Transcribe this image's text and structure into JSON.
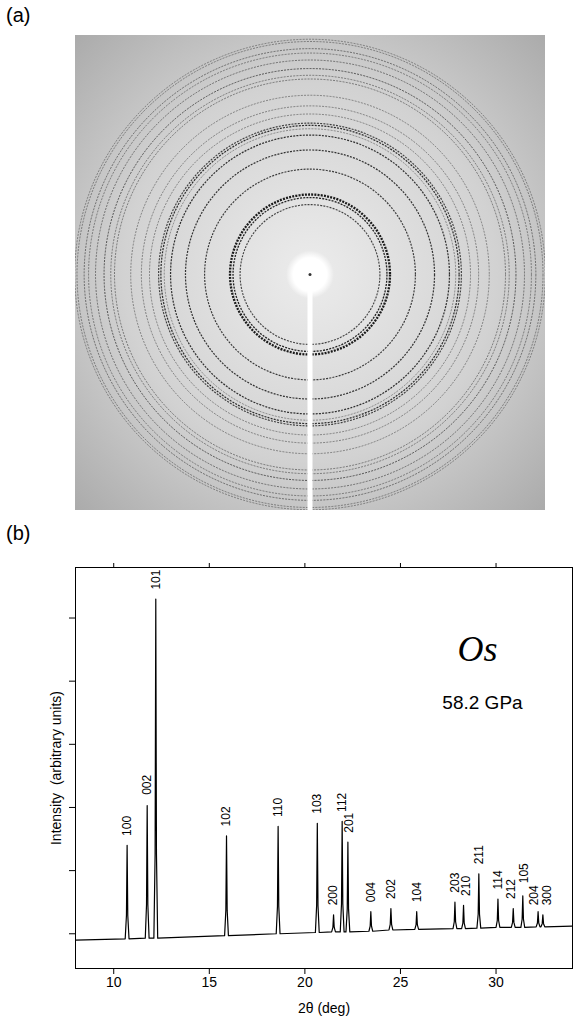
{
  "chart_data": [
    {
      "panel": "(a)",
      "type": "image"
    },
    {
      "panel": "(b)",
      "type": "line",
      "title": "Os",
      "subtitle": "58.2 GPa",
      "x_label": "2θ (deg)",
      "y_label": "Intensity  (arbitrary units)",
      "color": "#000000",
      "xlim": [
        8,
        34
      ],
      "ylim": [
        -0.55,
        5.8
      ],
      "xticks": [
        10,
        15,
        20,
        25,
        30
      ],
      "yticks": [
        0,
        1,
        2,
        3,
        4,
        5
      ],
      "tick_labels": "x",
      "x": [
        8,
        10.6,
        10.665,
        10.7,
        10.735,
        10.8,
        11.65,
        11.715,
        11.75,
        11.785,
        11.85,
        12.1,
        12.165,
        12.2,
        12.235,
        12.3,
        15.8,
        15.865,
        15.9,
        15.935,
        16.0,
        18.5,
        18.565,
        18.6,
        18.635,
        18.7,
        20.55,
        20.615,
        20.65,
        20.685,
        20.75,
        21.4,
        21.465,
        21.5,
        21.535,
        21.6,
        21.85,
        21.915,
        21.95,
        21.985,
        22.05,
        22.15,
        22.215,
        22.25,
        22.285,
        22.35,
        23.35,
        23.415,
        23.45,
        23.485,
        23.55,
        24.4,
        24.465,
        24.5,
        24.535,
        24.6,
        25.75,
        25.815,
        25.85,
        25.885,
        25.95,
        27.75,
        27.815,
        27.85,
        27.885,
        27.95,
        28.2,
        28.265,
        28.3,
        28.335,
        28.4,
        29.0,
        29.065,
        29.1,
        29.135,
        29.2,
        30.0,
        30.065,
        30.1,
        30.135,
        30.2,
        30.8,
        30.865,
        30.9,
        30.935,
        31.0,
        31.3,
        31.365,
        31.4,
        31.435,
        31.5,
        32.1,
        32.165,
        32.2,
        32.235,
        32.3,
        32.35,
        32.415,
        32.45,
        32.485,
        32.55,
        34
      ],
      "values": [
        -0.1,
        -0.08,
        0.29,
        1.4,
        0.29,
        -0.08,
        -0.07,
        0.46,
        2.03,
        0.46,
        -0.07,
        -0.07,
        1.27,
        5.3,
        1.27,
        -0.07,
        -0.03,
        0.37,
        1.55,
        0.37,
        -0.03,
        0,
        0.43,
        1.7,
        0.43,
        0,
        0.02,
        0.45,
        1.75,
        0.45,
        0.02,
        0.03,
        0.1,
        0.3,
        0.1,
        0.03,
        0.03,
        0.47,
        1.78,
        0.47,
        0.03,
        0.03,
        0.39,
        1.45,
        0.39,
        0.03,
        0.04,
        0.12,
        0.35,
        0.12,
        0.04,
        0.06,
        0.15,
        0.4,
        0.15,
        0.06,
        0.07,
        0.14,
        0.35,
        0.14,
        0.07,
        0.08,
        0.19,
        0.5,
        0.19,
        0.08,
        0.08,
        0.17,
        0.45,
        0.17,
        0.08,
        0.09,
        0.31,
        0.95,
        0.31,
        0.09,
        0.1,
        0.21,
        0.55,
        0.21,
        0.1,
        0.1,
        0.18,
        0.4,
        0.18,
        0.1,
        0.1,
        0.23,
        0.6,
        0.23,
        0.1,
        0.11,
        0.17,
        0.35,
        0.17,
        0.11,
        0.11,
        0.16,
        0.3,
        0.16,
        0.11,
        0.12
      ],
      "annotations": [
        {
          "text": "100",
          "x": 10.7,
          "y": 1.55
        },
        {
          "text": "002",
          "x": 11.75,
          "y": 2.2
        },
        {
          "text": "101",
          "x": 12.2,
          "y": 5.45
        },
        {
          "text": "102",
          "x": 15.9,
          "y": 1.7
        },
        {
          "text": "110",
          "x": 18.6,
          "y": 1.85
        },
        {
          "text": "103",
          "x": 20.65,
          "y": 1.9
        },
        {
          "text": "200",
          "x": 21.5,
          "y": 0.45
        },
        {
          "text": "112",
          "x": 21.95,
          "y": 1.93
        },
        {
          "text": "201",
          "x": 22.3,
          "y": 1.6
        },
        {
          "text": "004",
          "x": 23.45,
          "y": 0.5
        },
        {
          "text": "202",
          "x": 24.5,
          "y": 0.55
        },
        {
          "text": "104",
          "x": 25.85,
          "y": 0.5
        },
        {
          "text": "203",
          "x": 27.85,
          "y": 0.65
        },
        {
          "text": "210",
          "x": 28.45,
          "y": 0.6
        },
        {
          "text": "211",
          "x": 29.1,
          "y": 1.1
        },
        {
          "text": "114",
          "x": 30.1,
          "y": 0.7
        },
        {
          "text": "212",
          "x": 30.8,
          "y": 0.55
        },
        {
          "text": "105",
          "x": 31.45,
          "y": 0.8
        },
        {
          "text": "204",
          "x": 32.0,
          "y": 0.45
        },
        {
          "text": "300",
          "x": 32.65,
          "y": 0.45
        }
      ]
    }
  ]
}
